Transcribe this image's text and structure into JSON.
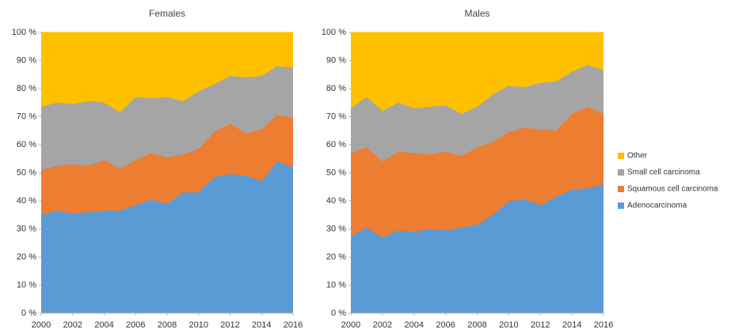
{
  "chart_data": [
    {
      "type": "area",
      "stacked": true,
      "title": "Females",
      "x": [
        2000,
        2001,
        2002,
        2003,
        2004,
        2005,
        2006,
        2007,
        2008,
        2009,
        2010,
        2011,
        2012,
        2013,
        2014,
        2015,
        2016
      ],
      "xlim": [
        2000,
        2016
      ],
      "xticks": [
        2000,
        2002,
        2004,
        2006,
        2008,
        2010,
        2012,
        2014,
        2016
      ],
      "ylim": [
        0,
        100
      ],
      "yticks": [
        {
          "value": 0,
          "label": "0 %"
        },
        {
          "value": 10,
          "label": "10 %"
        },
        {
          "value": 20,
          "label": "20 %"
        },
        {
          "value": 30,
          "label": "30 %"
        },
        {
          "value": 40,
          "label": "40 %"
        },
        {
          "value": 50,
          "label": "50 %"
        },
        {
          "value": 60,
          "label": "60 %"
        },
        {
          "value": 70,
          "label": "70 %"
        },
        {
          "value": 80,
          "label": "80 %"
        },
        {
          "value": 90,
          "label": "90 %"
        },
        {
          "value": 100,
          "label": "100 %"
        }
      ],
      "series": [
        {
          "name": "Adenocarcinoma",
          "color": "#5b9bd5",
          "values": [
            35,
            36.5,
            35.5,
            36,
            36.5,
            36.5,
            38.5,
            40.5,
            39,
            43,
            43,
            48.5,
            49.5,
            49,
            47,
            54,
            52
          ]
        },
        {
          "name": "Squamous cell carcinoma",
          "color": "#ed7d31",
          "values": [
            16,
            16,
            17.5,
            16.5,
            18,
            15,
            16,
            16.5,
            16.5,
            13.5,
            15.5,
            16,
            18,
            15,
            18.5,
            16.5,
            17.5
          ]
        },
        {
          "name": "Small cell carcinoma",
          "color": "#a5a5a5",
          "values": [
            22.5,
            22.5,
            21.5,
            23,
            20.5,
            20,
            22.5,
            19.5,
            21.5,
            19,
            20.5,
            17,
            17,
            20,
            19,
            17.5,
            18
          ]
        },
        {
          "name": "Other",
          "color": "#ffc000",
          "values": [
            26.5,
            25,
            25.5,
            24.5,
            25,
            28.5,
            23,
            23.5,
            23,
            24.5,
            21,
            18.5,
            15.5,
            16,
            15.5,
            12,
            12.5
          ]
        }
      ]
    },
    {
      "type": "area",
      "stacked": true,
      "title": "Males",
      "x": [
        2000,
        2001,
        2002,
        2003,
        2004,
        2005,
        2006,
        2007,
        2008,
        2009,
        2010,
        2011,
        2012,
        2013,
        2014,
        2015,
        2016
      ],
      "xlim": [
        2000,
        2016
      ],
      "xticks": [
        2000,
        2002,
        2004,
        2006,
        2008,
        2010,
        2012,
        2014,
        2016
      ],
      "ylim": [
        0,
        100
      ],
      "yticks": [
        {
          "value": 0,
          "label": "0 %"
        },
        {
          "value": 10,
          "label": "10 %"
        },
        {
          "value": 20,
          "label": "20 %"
        },
        {
          "value": 30,
          "label": "30 %"
        },
        {
          "value": 40,
          "label": "40 %"
        },
        {
          "value": 50,
          "label": "50 %"
        },
        {
          "value": 60,
          "label": "60 %"
        },
        {
          "value": 70,
          "label": "70 %"
        },
        {
          "value": 80,
          "label": "80 %"
        },
        {
          "value": 90,
          "label": "90 %"
        },
        {
          "value": 100,
          "label": "100 %"
        }
      ],
      "series": [
        {
          "name": "Adenocarcinoma",
          "color": "#5b9bd5",
          "values": [
            27.5,
            30.5,
            27,
            29.5,
            29,
            30,
            29.5,
            30.5,
            31.5,
            35,
            40,
            40.5,
            38.5,
            41.5,
            44,
            44.5,
            46
          ]
        },
        {
          "name": "Squamous cell carcinoma",
          "color": "#ed7d31",
          "values": [
            29.5,
            28.5,
            27,
            28,
            28,
            26.5,
            28,
            25.5,
            27.5,
            26,
            24.5,
            25.5,
            27,
            23.5,
            27,
            29,
            25
          ]
        },
        {
          "name": "Small cell carcinoma",
          "color": "#a5a5a5",
          "values": [
            16,
            18,
            18,
            17.5,
            16,
            17,
            16.5,
            15,
            14.5,
            17,
            16.5,
            14.5,
            16.5,
            17.5,
            15,
            15,
            15.5
          ]
        },
        {
          "name": "Other",
          "color": "#ffc000",
          "values": [
            27,
            23,
            28,
            25,
            27,
            26.5,
            26,
            29,
            26.5,
            22,
            19,
            19.5,
            18,
            17.5,
            14,
            11.5,
            13.5
          ]
        }
      ]
    }
  ]
}
